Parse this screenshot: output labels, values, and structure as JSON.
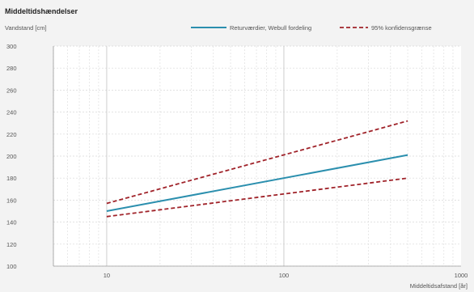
{
  "chart_data": {
    "type": "line",
    "title": "Middeltidshændelser",
    "ylabel": "Vandstand [cm]",
    "xlabel": "Middeltidsafstand [år]",
    "x_scale": "log",
    "xlim": [
      5,
      1000
    ],
    "ylim": [
      100,
      300
    ],
    "x_ticks": [
      10,
      100,
      1000
    ],
    "y_ticks": [
      100,
      120,
      140,
      160,
      180,
      200,
      220,
      240,
      260,
      280,
      300
    ],
    "grid": true,
    "legend_position": "top-right",
    "series": [
      {
        "name": "Returværdier, Webull fordeling",
        "color": "#2b8fae",
        "style": "solid",
        "x": [
          10,
          500
        ],
        "y": [
          150,
          201
        ]
      },
      {
        "name": "95% konfidensgrænse",
        "color": "#a0232a",
        "style": "dashed",
        "x": [
          10,
          500
        ],
        "y": [
          157,
          232
        ]
      },
      {
        "name": "",
        "color": "#a0232a",
        "style": "dashed",
        "x": [
          10,
          500
        ],
        "y": [
          145,
          180
        ]
      }
    ]
  }
}
